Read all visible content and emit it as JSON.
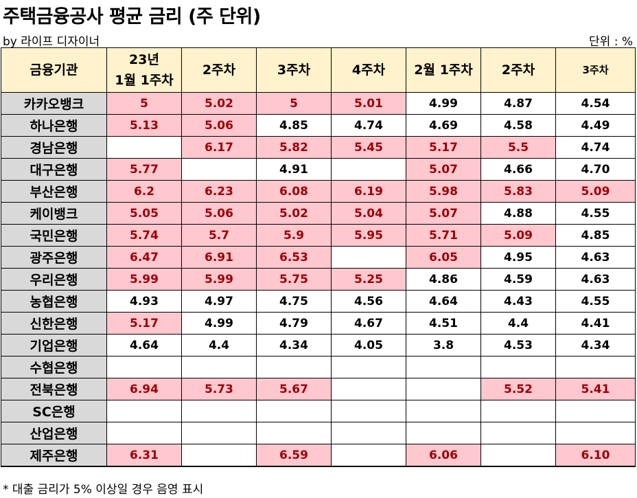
{
  "title": "주택금융공사 평균 금리 (주 단위)",
  "byline": "by 라이프 디자이너",
  "unit_label": "단위 : %",
  "table": {
    "corner_header": "금융기관",
    "columns": [
      {
        "line1": "23년",
        "line2": "1월 1주차"
      },
      {
        "line1": "2주차"
      },
      {
        "line1": "3주차"
      },
      {
        "line1": "4주차"
      },
      {
        "line1": "2월 1주차"
      },
      {
        "line1": "2주차"
      },
      {
        "line1": "3주차"
      }
    ],
    "rows": [
      {
        "name": "카카오뱅크",
        "values": [
          "5",
          "5.02",
          "5",
          "5.01",
          "4.99",
          "4.87",
          "4.54"
        ]
      },
      {
        "name": "하나은행",
        "values": [
          "5.13",
          "5.06",
          "4.85",
          "4.74",
          "4.69",
          "4.58",
          "4.49"
        ]
      },
      {
        "name": "경남은행",
        "values": [
          "",
          "6.17",
          "5.82",
          "5.45",
          "5.17",
          "5.5",
          "4.74"
        ]
      },
      {
        "name": "대구은행",
        "values": [
          "5.77",
          "",
          "4.91",
          "",
          "5.07",
          "4.66",
          "4.70"
        ]
      },
      {
        "name": "부산은행",
        "values": [
          "6.2",
          "6.23",
          "6.08",
          "6.19",
          "5.98",
          "5.83",
          "5.09"
        ]
      },
      {
        "name": "케이뱅크",
        "values": [
          "5.05",
          "5.06",
          "5.02",
          "5.04",
          "5.07",
          "4.88",
          "4.55"
        ]
      },
      {
        "name": "국민은행",
        "values": [
          "5.74",
          "5.7",
          "5.9",
          "5.95",
          "5.71",
          "5.09",
          "4.85"
        ]
      },
      {
        "name": "광주은행",
        "values": [
          "6.47",
          "6.91",
          "6.53",
          "",
          "6.05",
          "4.95",
          "4.63"
        ]
      },
      {
        "name": "우리은행",
        "values": [
          "5.99",
          "5.99",
          "5.75",
          "5.25",
          "4.86",
          "4.59",
          "4.63"
        ]
      },
      {
        "name": "농협은행",
        "values": [
          "4.93",
          "4.97",
          "4.75",
          "4.56",
          "4.64",
          "4.43",
          "4.55"
        ]
      },
      {
        "name": "신한은행",
        "values": [
          "5.17",
          "4.99",
          "4.79",
          "4.67",
          "4.51",
          "4.4",
          "4.41"
        ]
      },
      {
        "name": "기업은행",
        "values": [
          "4.64",
          "4.4",
          "4.34",
          "4.05",
          "3.8",
          "4.53",
          "4.34"
        ]
      },
      {
        "name": "수협은행",
        "values": [
          "",
          "",
          "",
          "",
          "",
          "",
          ""
        ]
      },
      {
        "name": "전북은행",
        "values": [
          "6.94",
          "5.73",
          "5.67",
          "",
          "",
          "5.52",
          "5.41"
        ]
      },
      {
        "name": "SC은행",
        "values": [
          "",
          "",
          "",
          "",
          "",
          "",
          ""
        ]
      },
      {
        "name": "산업은행",
        "values": [
          "",
          "",
          "",
          "",
          "",
          "",
          ""
        ]
      },
      {
        "name": "제주은행",
        "values": [
          "6.31",
          "",
          "6.59",
          "",
          "6.06",
          "",
          "6.10"
        ]
      }
    ],
    "highlight_threshold": 5,
    "highlight_bg": "#ffc7ce",
    "highlight_text": "#9c0006",
    "header_bg": "#fff2cc",
    "row_header_bg": "#d9d9d9"
  },
  "footnote": "* 대출 금리가 5% 이상일 경우 음영 표시"
}
